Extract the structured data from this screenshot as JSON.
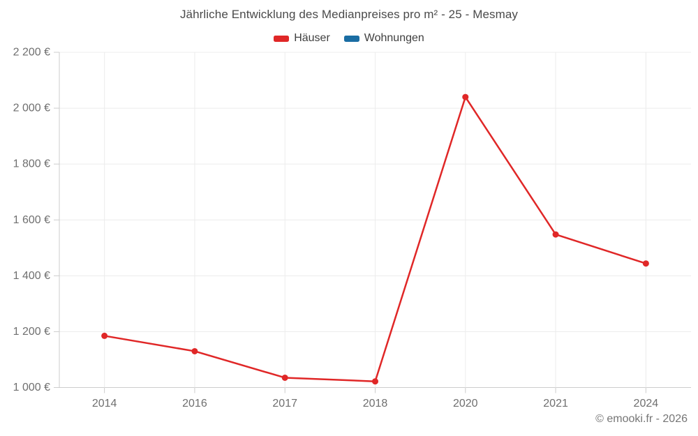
{
  "header": {
    "title": "Jährliche Entwicklung des Medianpreises pro m² - 25 - Mesmay"
  },
  "legend": {
    "items": [
      {
        "label": "Häuser",
        "color": "#e02727"
      },
      {
        "label": "Wohnungen",
        "color": "#1a6da3"
      }
    ]
  },
  "footer": {
    "credit": "© emooki.fr - 2026"
  },
  "style": {
    "grid_color": "#ececec",
    "axis_color": "#cccccc",
    "axis_label_color": "#6f6f6f",
    "title_color": "#4a4a4a",
    "point_radius": 4.5,
    "line_width": 2.5
  },
  "chart_data": {
    "type": "line",
    "title": "Jährliche Entwicklung des Medianpreises pro m² - 25 - Mesmay",
    "categories": [
      "2014",
      "2016",
      "2017",
      "2018",
      "2020",
      "2021",
      "2024"
    ],
    "series": [
      {
        "name": "Häuser",
        "color": "#e02727",
        "values": [
          1185,
          1130,
          1035,
          1022,
          2040,
          1548,
          1444
        ]
      },
      {
        "name": "Wohnungen",
        "color": "#1a6da3",
        "values": []
      }
    ],
    "xlabel": "",
    "ylabel": "",
    "ylim": [
      1000,
      2200
    ],
    "y_axis": {
      "min": 1000,
      "max": 2200,
      "step": 200,
      "unit": "€",
      "tick_labels": [
        "1 000 €",
        "1 200 €",
        "1 400 €",
        "1 600 €",
        "1 800 €",
        "2 000 €",
        "2 200 €"
      ]
    },
    "grid": true,
    "legend_position": "top"
  }
}
